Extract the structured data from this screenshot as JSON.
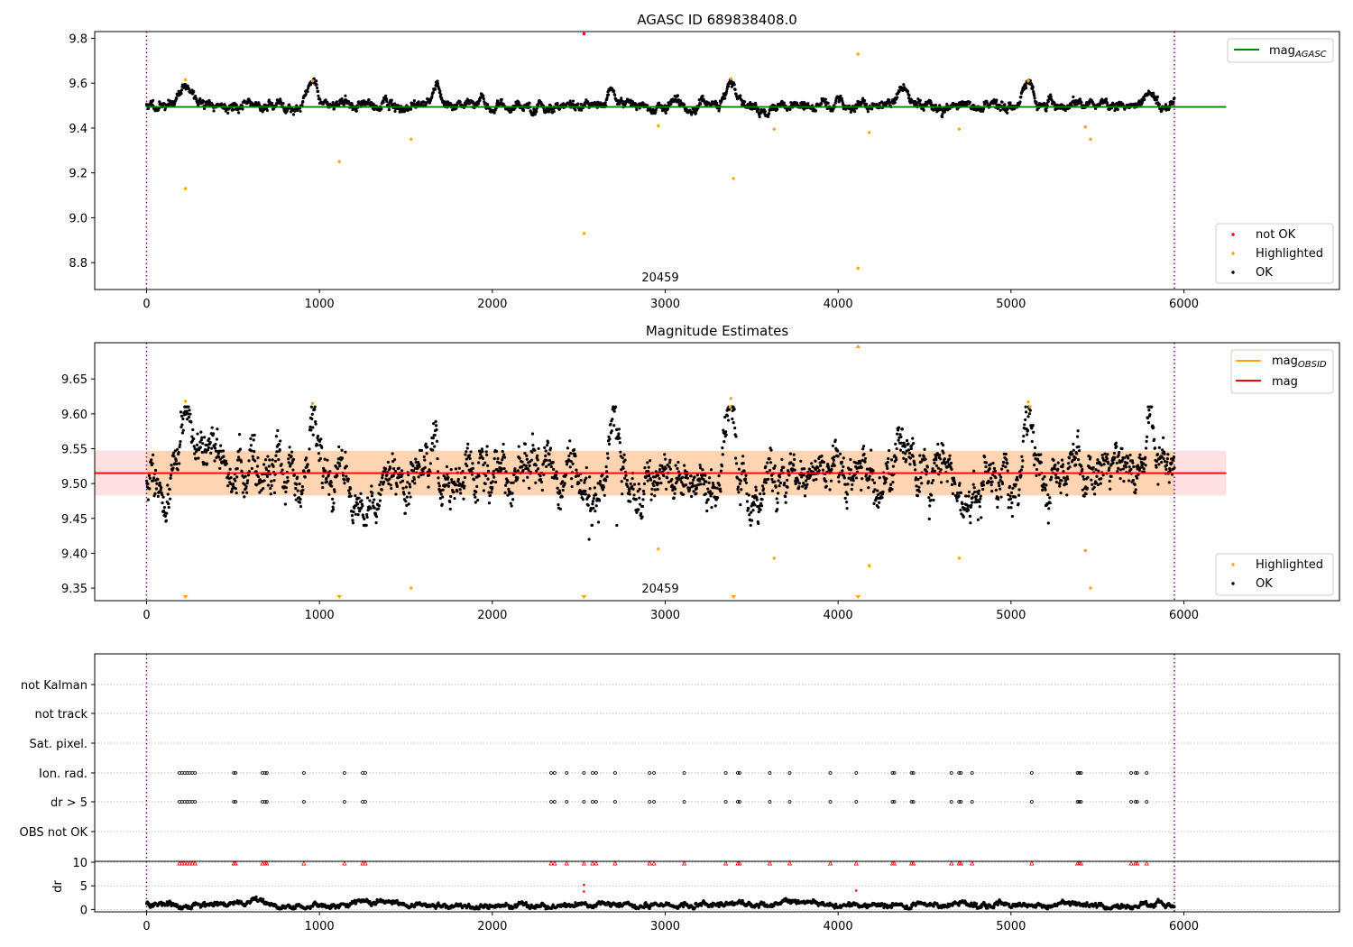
{
  "colors": {
    "ok": "#000000",
    "highlighted": "#ffa500",
    "not_ok": "#ff0000",
    "agasc_line": "#008000",
    "mag_line": "#ff0000",
    "band_fill": "#ff9999",
    "obs_boundary": "#800080",
    "grid": "#b0b0b0"
  },
  "chart_data": [
    {
      "type": "scatter",
      "title": "AGASC ID 689838408.0",
      "xlim": [
        -300,
        6900
      ],
      "ylim": [
        8.68,
        9.83
      ],
      "xticks": [
        0,
        1000,
        2000,
        3000,
        4000,
        5000,
        6000
      ],
      "yticks": [
        8.8,
        9.0,
        9.2,
        9.4,
        9.6,
        9.8
      ],
      "obs_boundaries": [
        0,
        5945
      ],
      "obsid_label": "20459",
      "legend_upper": {
        "position": "upper right",
        "entries": [
          {
            "label": "mag",
            "sub": "AGASC",
            "color": "agasc_line"
          }
        ]
      },
      "legend_lower": {
        "position": "lower right",
        "entries": [
          {
            "label": "not OK",
            "color": "not_ok"
          },
          {
            "label": "Highlighted",
            "color": "highlighted"
          },
          {
            "label": "OK",
            "color": "ok"
          }
        ]
      },
      "hline": {
        "name": "mag_AGASC",
        "y": 9.494,
        "x_range": [
          0,
          6245
        ]
      },
      "ok_series": {
        "x_range": [
          0,
          5945
        ],
        "baseline": 9.5,
        "spread": 0.018,
        "bumps": [
          {
            "x": 230,
            "y": 9.585,
            "w": 60
          },
          {
            "x": 960,
            "y": 9.6,
            "w": 40
          },
          {
            "x": 3380,
            "y": 9.61,
            "w": 40
          },
          {
            "x": 5100,
            "y": 9.6,
            "w": 45
          },
          {
            "x": 5800,
            "y": 9.58,
            "w": 40
          },
          {
            "x": 1670,
            "y": 9.56,
            "w": 30
          },
          {
            "x": 2690,
            "y": 9.575,
            "w": 30
          },
          {
            "x": 4380,
            "y": 9.57,
            "w": 50
          }
        ]
      },
      "highlighted_points": [
        {
          "x": 225,
          "y": 9.615
        },
        {
          "x": 225,
          "y": 9.13
        },
        {
          "x": 960,
          "y": 9.61
        },
        {
          "x": 1115,
          "y": 9.25
        },
        {
          "x": 1530,
          "y": 9.35
        },
        {
          "x": 2530,
          "y": 8.93
        },
        {
          "x": 2960,
          "y": 9.41
        },
        {
          "x": 3380,
          "y": 9.62
        },
        {
          "x": 3395,
          "y": 9.175
        },
        {
          "x": 3630,
          "y": 9.395
        },
        {
          "x": 4115,
          "y": 9.73
        },
        {
          "x": 4115,
          "y": 8.775
        },
        {
          "x": 4180,
          "y": 9.38
        },
        {
          "x": 4700,
          "y": 9.395
        },
        {
          "x": 5100,
          "y": 9.61
        },
        {
          "x": 5430,
          "y": 9.405
        },
        {
          "x": 5460,
          "y": 9.35
        }
      ],
      "not_ok_points": [
        {
          "x": 2530,
          "y": 9.82
        }
      ]
    },
    {
      "type": "scatter",
      "title": "Magnitude Estimates",
      "xlim": [
        -300,
        6900
      ],
      "ylim": [
        9.332,
        9.702
      ],
      "xticks": [
        0,
        1000,
        2000,
        3000,
        4000,
        5000,
        6000
      ],
      "yticks": [
        9.35,
        9.4,
        9.45,
        9.5,
        9.55,
        9.6,
        9.65
      ],
      "obs_boundaries": [
        0,
        5945
      ],
      "obsid_label": "20459",
      "legend_upper": {
        "position": "upper right",
        "entries": [
          {
            "label": "mag",
            "sub": "OBSID",
            "color": "highlighted"
          },
          {
            "label": "mag",
            "sub": "",
            "color": "mag_line"
          }
        ]
      },
      "legend_lower": {
        "position": "lower right",
        "entries": [
          {
            "label": "Highlighted",
            "color": "highlighted"
          },
          {
            "label": "OK",
            "color": "ok"
          }
        ]
      },
      "mag_line": {
        "y": 9.515,
        "x_range": [
          -300,
          6245
        ]
      },
      "band": {
        "y_low": 9.483,
        "y_high": 9.547,
        "x_range": [
          -300,
          6245
        ]
      },
      "obsid_band": {
        "y_low": 9.483,
        "y_high": 9.547,
        "x_range": [
          0,
          5945
        ]
      },
      "ok_series": {
        "x_range": [
          0,
          5945
        ],
        "baseline": 9.51,
        "spread": 0.028,
        "bumps": [
          {
            "x": 230,
            "y": 9.585,
            "w": 50
          },
          {
            "x": 960,
            "y": 9.595,
            "w": 40
          },
          {
            "x": 3380,
            "y": 9.605,
            "w": 40
          },
          {
            "x": 5100,
            "y": 9.595,
            "w": 45
          },
          {
            "x": 5800,
            "y": 9.585,
            "w": 40
          },
          {
            "x": 2690,
            "y": 9.575,
            "w": 30
          },
          {
            "x": 1670,
            "y": 9.575,
            "w": 30
          },
          {
            "x": 4380,
            "y": 9.575,
            "w": 50
          },
          {
            "x": 60,
            "y": 9.47,
            "w": 70
          },
          {
            "x": 2600,
            "y": 9.465,
            "w": 70
          },
          {
            "x": 3540,
            "y": 9.47,
            "w": 70
          },
          {
            "x": 4740,
            "y": 9.47,
            "w": 60
          },
          {
            "x": 5020,
            "y": 9.465,
            "w": 60
          },
          {
            "x": 1290,
            "y": 9.465,
            "w": 70
          }
        ],
        "outliers": [
          {
            "x": 2560,
            "y": 9.42
          },
          {
            "x": 2720,
            "y": 9.44
          }
        ]
      },
      "highlighted_points": [
        {
          "x": 225,
          "y": 9.618
        },
        {
          "x": 960,
          "y": 9.615
        },
        {
          "x": 1530,
          "y": 9.35
        },
        {
          "x": 2960,
          "y": 9.406
        },
        {
          "x": 3380,
          "y": 9.622
        },
        {
          "x": 3375,
          "y": 9.61
        },
        {
          "x": 3630,
          "y": 9.393
        },
        {
          "x": 4180,
          "y": 9.382
        },
        {
          "x": 4700,
          "y": 9.393
        },
        {
          "x": 5100,
          "y": 9.617
        },
        {
          "x": 5110,
          "y": 9.61
        },
        {
          "x": 5430,
          "y": 9.404
        },
        {
          "x": 5460,
          "y": 9.35
        }
      ],
      "offscale_low": [
        225,
        1115,
        2530,
        3395,
        4115
      ],
      "offscale_high": [
        4115
      ]
    },
    {
      "type": "scatter",
      "title": "",
      "xlim": [
        -300,
        6900
      ],
      "xticks": [
        0,
        1000,
        2000,
        3000,
        4000,
        5000,
        6000
      ],
      "obs_boundaries": [
        0,
        5945
      ],
      "flags": [
        "not Kalman",
        "not track",
        "Sat. pixel.",
        "Ion. rad.",
        "dr > 5",
        "OBS not OK"
      ],
      "flag_events": {
        "Ion. rad.": [
          190,
          205,
          220,
          235,
          250,
          265,
          280,
          505,
          515,
          670,
          685,
          695,
          910,
          1145,
          1250,
          1265,
          2340,
          2360,
          2430,
          2530,
          2580,
          2600,
          2710,
          2910,
          2935,
          3110,
          3350,
          3420,
          3430,
          3605,
          3720,
          3955,
          4105,
          4315,
          4325,
          4425,
          4435,
          4655,
          4700,
          4710,
          4775,
          5120,
          5385,
          5395,
          5405,
          5695,
          5720,
          5730,
          5785
        ],
        "dr > 5": [
          190,
          205,
          220,
          235,
          250,
          265,
          280,
          505,
          515,
          670,
          685,
          695,
          910,
          1145,
          1250,
          1265,
          2340,
          2360,
          2430,
          2530,
          2580,
          2600,
          2710,
          2910,
          2935,
          3110,
          3350,
          3420,
          3430,
          3605,
          3720,
          3955,
          4105,
          4315,
          4325,
          4425,
          4435,
          4655,
          4700,
          4710,
          4775,
          5120,
          5385,
          5395,
          5405,
          5695,
          5720,
          5730,
          5785
        ]
      }
    },
    {
      "type": "scatter",
      "title": "",
      "ylabel": "dr",
      "xlim": [
        -300,
        6900
      ],
      "ylim": [
        -0.5,
        10.2
      ],
      "xticks": [
        0,
        1000,
        2000,
        3000,
        4000,
        5000,
        6000
      ],
      "yticks": [
        0,
        5,
        10
      ],
      "obs_boundaries": [
        0,
        5945
      ],
      "ok_series": {
        "x_range": [
          0,
          5945
        ],
        "baseline": 0.9,
        "spread": 0.45,
        "bumps": [
          {
            "x": 1250,
            "y": 1.6,
            "w": 150
          },
          {
            "x": 3700,
            "y": 1.9,
            "w": 80
          },
          {
            "x": 650,
            "y": 1.9,
            "w": 60
          },
          {
            "x": 4700,
            "y": 1.8,
            "w": 60
          }
        ]
      },
      "red_points": [
        {
          "x": 2530,
          "y": 5.2
        },
        {
          "x": 2530,
          "y": 3.8
        },
        {
          "x": 4105,
          "y": 4.0
        }
      ],
      "top_markers": [
        190,
        205,
        220,
        235,
        250,
        265,
        280,
        505,
        515,
        670,
        685,
        695,
        910,
        1145,
        1250,
        1265,
        2340,
        2360,
        2430,
        2530,
        2580,
        2600,
        2710,
        2910,
        2935,
        3110,
        3350,
        3420,
        3430,
        3605,
        3720,
        3955,
        4105,
        4315,
        4325,
        4425,
        4435,
        4655,
        4700,
        4710,
        4775,
        5120,
        5385,
        5395,
        5405,
        5695,
        5720,
        5730,
        5785
      ]
    }
  ]
}
